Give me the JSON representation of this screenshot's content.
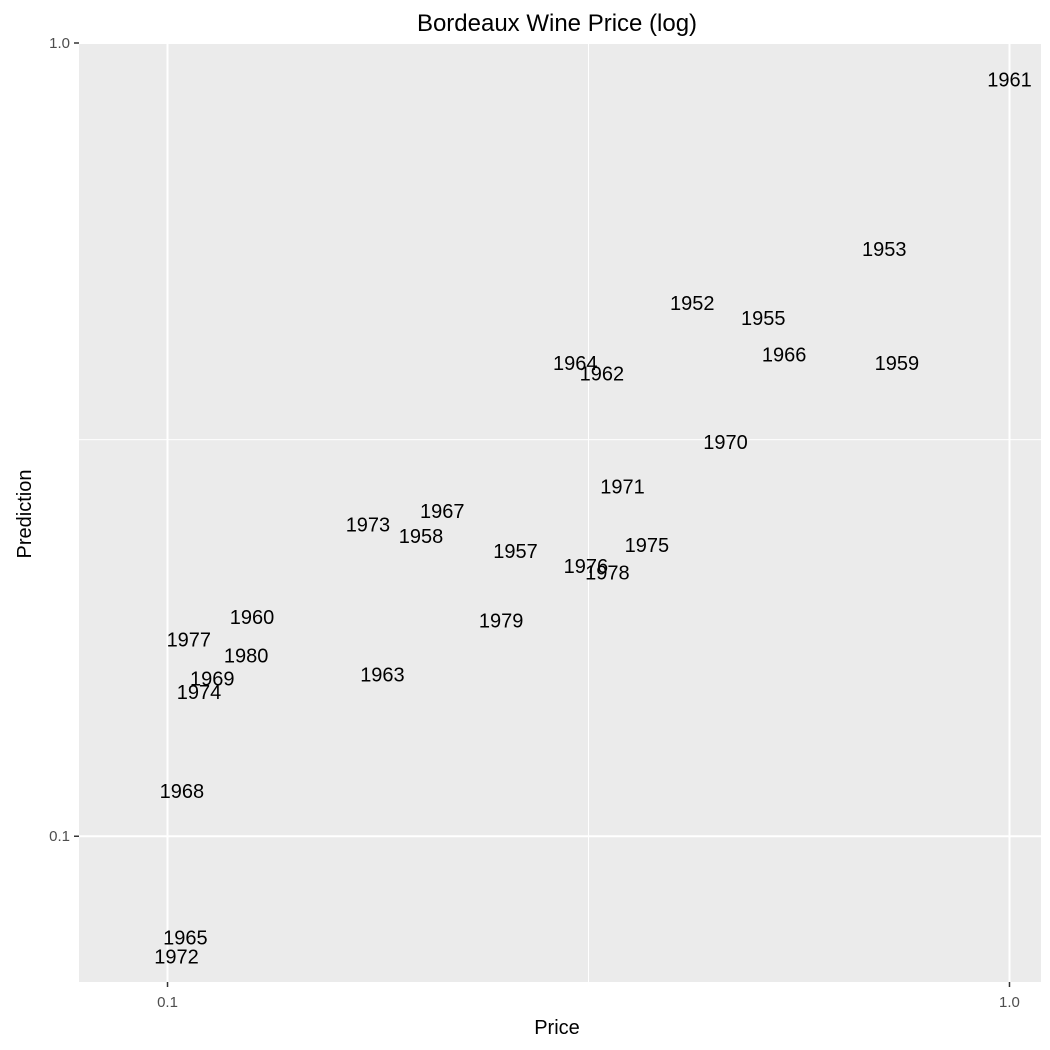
{
  "chart_data": {
    "type": "scatter",
    "title": "Bordeaux Wine Price (log)",
    "xlabel": "Price",
    "ylabel": "Prediction",
    "x_scale": "log10",
    "y_scale": "log10",
    "xlim": [
      0.0785,
      1.09
    ],
    "ylim": [
      0.0655,
      1.0
    ],
    "x_ticks": [
      0.1,
      1.0
    ],
    "x_tick_labels": [
      "0.1",
      "1.0"
    ],
    "y_ticks": [
      0.1,
      1.0
    ],
    "y_tick_labels": [
      "0.1",
      "1.0"
    ],
    "grid": true,
    "background": "#ebebeb",
    "grid_color": "#ffffff",
    "points": [
      {
        "label": "1961",
        "x": 1.0,
        "y": 0.9
      },
      {
        "label": "1953",
        "x": 0.71,
        "y": 0.55
      },
      {
        "label": "1952",
        "x": 0.42,
        "y": 0.47
      },
      {
        "label": "1955",
        "x": 0.51,
        "y": 0.45
      },
      {
        "label": "1966",
        "x": 0.54,
        "y": 0.405
      },
      {
        "label": "1959",
        "x": 0.735,
        "y": 0.395
      },
      {
        "label": "1964",
        "x": 0.305,
        "y": 0.395
      },
      {
        "label": "1962",
        "x": 0.328,
        "y": 0.383
      },
      {
        "label": "1970",
        "x": 0.46,
        "y": 0.314
      },
      {
        "label": "1971",
        "x": 0.347,
        "y": 0.276
      },
      {
        "label": "1967",
        "x": 0.212,
        "y": 0.257
      },
      {
        "label": "1973",
        "x": 0.173,
        "y": 0.247
      },
      {
        "label": "1958",
        "x": 0.2,
        "y": 0.239
      },
      {
        "label": "1957",
        "x": 0.259,
        "y": 0.229
      },
      {
        "label": "1975",
        "x": 0.371,
        "y": 0.233
      },
      {
        "label": "1976",
        "x": 0.314,
        "y": 0.219
      },
      {
        "label": "1978",
        "x": 0.333,
        "y": 0.215
      },
      {
        "label": "1960",
        "x": 0.126,
        "y": 0.189
      },
      {
        "label": "1979",
        "x": 0.249,
        "y": 0.187
      },
      {
        "label": "1977",
        "x": 0.106,
        "y": 0.177
      },
      {
        "label": "1980",
        "x": 0.124,
        "y": 0.169
      },
      {
        "label": "1963",
        "x": 0.18,
        "y": 0.16
      },
      {
        "label": "1969",
        "x": 0.113,
        "y": 0.158
      },
      {
        "label": "1974",
        "x": 0.109,
        "y": 0.152
      },
      {
        "label": "1968",
        "x": 0.104,
        "y": 0.114
      },
      {
        "label": "1965",
        "x": 0.105,
        "y": 0.0745
      },
      {
        "label": "1972",
        "x": 0.1025,
        "y": 0.0705
      }
    ]
  }
}
